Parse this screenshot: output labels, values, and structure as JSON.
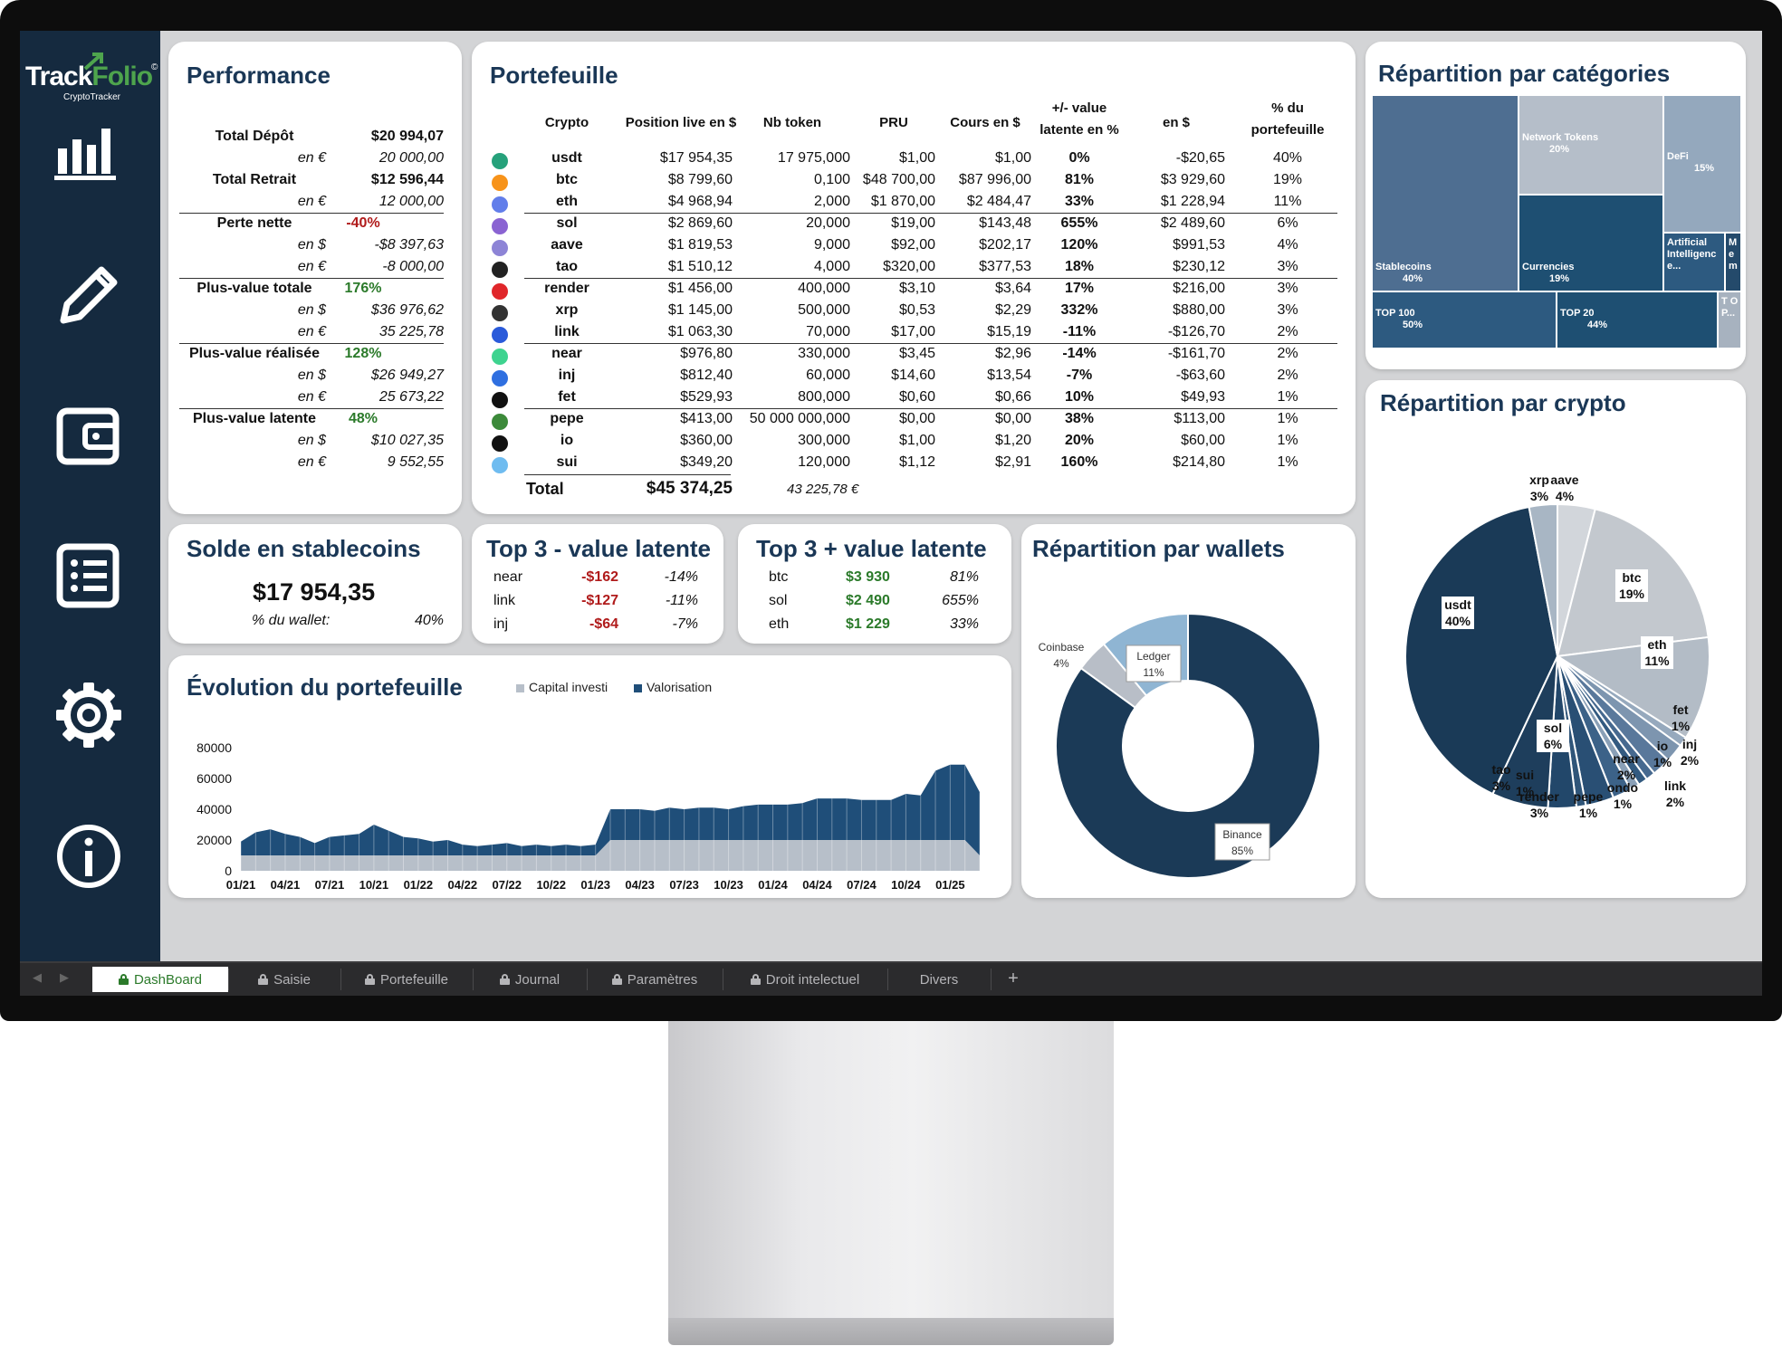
{
  "app": {
    "logo_track": "Track",
    "logo_folio": "Folio",
    "logo_reg": "©",
    "logo_sub": "CryptoTracker"
  },
  "colors": {
    "navy": "#1a3756",
    "dark": "#152a3f",
    "green": "#2b7a2a",
    "red": "#b01b1b"
  },
  "sidebar": {
    "icons": [
      "bar-chart-icon",
      "pencil-icon",
      "wallet-icon",
      "list-icon",
      "gear-icon",
      "info-icon"
    ]
  },
  "performance": {
    "title": "Performance",
    "rows": [
      {
        "label": "Total Dépôt",
        "value": "$20 994,07",
        "kind": "main"
      },
      {
        "label": "en €",
        "value": "20 000,00",
        "kind": "sub"
      },
      {
        "label": "Total Retrait",
        "value": "$12 596,44",
        "kind": "main"
      },
      {
        "label": "en €",
        "value": "12 000,00",
        "kind": "sub"
      },
      {
        "label": "Perte nette",
        "value": "-40%",
        "kind": "main-red"
      },
      {
        "label": "en $",
        "value": "-$8 397,63",
        "kind": "sub"
      },
      {
        "label": "en €",
        "value": "-8 000,00",
        "kind": "sub"
      },
      {
        "label": "Plus-value totale",
        "value": "176%",
        "kind": "main-green"
      },
      {
        "label": "en $",
        "value": "$36 976,62",
        "kind": "sub"
      },
      {
        "label": "en €",
        "value": "35 225,78",
        "kind": "sub"
      },
      {
        "label": "Plus-value réalisée",
        "value": "128%",
        "kind": "main-green"
      },
      {
        "label": "en $",
        "value": "$26 949,27",
        "kind": "sub"
      },
      {
        "label": "en €",
        "value": "25 673,22",
        "kind": "sub"
      },
      {
        "label": "Plus-value latente",
        "value": "48%",
        "kind": "main-green"
      },
      {
        "label": "en $",
        "value": "$10 027,35",
        "kind": "sub"
      },
      {
        "label": "en €",
        "value": "9 552,55",
        "kind": "sub"
      }
    ]
  },
  "portfolio": {
    "title": "Portefeuille",
    "headers": [
      "Crypto",
      "Position live en $",
      "Nb token",
      "PRU",
      "Cours en $",
      "+/- value latente en %",
      "en $",
      "% du portefeuille"
    ],
    "rows": [
      {
        "crypto": "usdt",
        "position": "$17 954,35",
        "nb": "17 975,000",
        "pru": "$1,00",
        "cours": "$1,00",
        "pct": "0%",
        "usd": "-$20,65",
        "share": "40%",
        "pos": false,
        "icon": "tether-icon",
        "color": "#26a17b"
      },
      {
        "crypto": "btc",
        "position": "$8 799,60",
        "nb": "0,100",
        "pru": "$48 700,00",
        "cours": "$87 996,00",
        "pct": "81%",
        "usd": "$3 929,60",
        "share": "19%",
        "pos": true,
        "icon": "bitcoin-icon",
        "color": "#f7931a"
      },
      {
        "crypto": "eth",
        "position": "$4 968,94",
        "nb": "2,000",
        "pru": "$1 870,00",
        "cours": "$2 484,47",
        "pct": "33%",
        "usd": "$1 228,94",
        "share": "11%",
        "pos": true,
        "icon": "ethereum-icon",
        "color": "#627eea"
      },
      {
        "crypto": "sol",
        "position": "$2 869,60",
        "nb": "20,000",
        "pru": "$19,00",
        "cours": "$143,48",
        "pct": "655%",
        "usd": "$2 489,60",
        "share": "6%",
        "pos": true,
        "icon": "solana-icon",
        "color": "#8a63d2"
      },
      {
        "crypto": "aave",
        "position": "$1 819,53",
        "nb": "9,000",
        "pru": "$92,00",
        "cours": "$202,17",
        "pct": "120%",
        "usd": "$991,53",
        "share": "4%",
        "pos": true,
        "icon": "aave-icon",
        "color": "#8d84d6"
      },
      {
        "crypto": "tao",
        "position": "$1 510,12",
        "nb": "4,000",
        "pru": "$320,00",
        "cours": "$377,53",
        "pct": "18%",
        "usd": "$230,12",
        "share": "3%",
        "pos": true,
        "icon": "tao-icon",
        "color": "#222222"
      },
      {
        "crypto": "render",
        "position": "$1 456,00",
        "nb": "400,000",
        "pru": "$3,10",
        "cours": "$3,64",
        "pct": "17%",
        "usd": "$216,00",
        "share": "3%",
        "pos": true,
        "icon": "render-icon",
        "color": "#e0262a"
      },
      {
        "crypto": "xrp",
        "position": "$1 145,00",
        "nb": "500,000",
        "pru": "$0,53",
        "cours": "$2,29",
        "pct": "332%",
        "usd": "$880,00",
        "share": "3%",
        "pos": true,
        "icon": "xrp-icon",
        "color": "#333333"
      },
      {
        "crypto": "link",
        "position": "$1 063,30",
        "nb": "70,000",
        "pru": "$17,00",
        "cours": "$15,19",
        "pct": "-11%",
        "usd": "-$126,70",
        "share": "2%",
        "pos": false,
        "icon": "chainlink-icon",
        "color": "#2a5ada"
      },
      {
        "crypto": "near",
        "position": "$976,80",
        "nb": "330,000",
        "pru": "$3,45",
        "cours": "$2,96",
        "pct": "-14%",
        "usd": "-$161,70",
        "share": "2%",
        "pos": false,
        "icon": "near-icon",
        "color": "#3ed38f"
      },
      {
        "crypto": "inj",
        "position": "$812,40",
        "nb": "60,000",
        "pru": "$14,60",
        "cours": "$13,54",
        "pct": "-7%",
        "usd": "-$63,60",
        "share": "2%",
        "pos": false,
        "icon": "injective-icon",
        "color": "#2f6fe0"
      },
      {
        "crypto": "fet",
        "position": "$529,93",
        "nb": "800,000",
        "pru": "$0,60",
        "cours": "$0,66",
        "pct": "10%",
        "usd": "$49,93",
        "share": "1%",
        "pos": true,
        "icon": "fetch-icon",
        "color": "#111111"
      },
      {
        "crypto": "pepe",
        "position": "$413,00",
        "nb": "50 000 000,000",
        "pru": "$0,00",
        "cours": "$0,00",
        "pct": "38%",
        "usd": "$113,00",
        "share": "1%",
        "pos": true,
        "icon": "pepe-icon",
        "color": "#3c8a3a"
      },
      {
        "crypto": "io",
        "position": "$360,00",
        "nb": "300,000",
        "pru": "$1,00",
        "cours": "$1,20",
        "pct": "20%",
        "usd": "$60,00",
        "share": "1%",
        "pos": true,
        "icon": "io-icon",
        "color": "#111111"
      },
      {
        "crypto": "sui",
        "position": "$349,20",
        "nb": "120,000",
        "pru": "$1,12",
        "cours": "$2,91",
        "pct": "160%",
        "usd": "$214,80",
        "share": "1%",
        "pos": true,
        "icon": "sui-icon",
        "color": "#6fbcf0"
      }
    ],
    "total_label": "Total",
    "total_usd": "$45 374,25",
    "total_eur": "43 225,78 €"
  },
  "stable": {
    "title": "Solde en stablecoins",
    "value": "$17 954,35",
    "pct_label": "% du wallet:",
    "pct": "40%"
  },
  "top_neg": {
    "title": "Top 3 - value latente",
    "rows": [
      {
        "name": "near",
        "usd": "-$162",
        "pct": "-14%"
      },
      {
        "name": "link",
        "usd": "-$127",
        "pct": "-11%"
      },
      {
        "name": "inj",
        "usd": "-$64",
        "pct": "-7%"
      }
    ]
  },
  "top_pos": {
    "title": "Top 3 + value latente",
    "rows": [
      {
        "name": "btc",
        "usd": "$3 930",
        "pct": "81%"
      },
      {
        "name": "sol",
        "usd": "$2 490",
        "pct": "655%"
      },
      {
        "name": "eth",
        "usd": "$1 229",
        "pct": "33%"
      }
    ]
  },
  "evolution": {
    "title": "Évolution du portefeuille"
  },
  "wallets": {
    "title": "Répartition par wallets"
  },
  "categories": {
    "title": "Répartition par catégories"
  },
  "crypto_pie": {
    "title": "Répartition par crypto"
  },
  "chart_data": [
    {
      "type": "area",
      "title": "Évolution du portefeuille",
      "x": [
        "01/21",
        "02/21",
        "03/21",
        "04/21",
        "05/21",
        "06/21",
        "07/21",
        "08/21",
        "09/21",
        "10/21",
        "11/21",
        "12/21",
        "01/22",
        "02/22",
        "03/22",
        "04/22",
        "05/22",
        "06/22",
        "07/22",
        "08/22",
        "09/22",
        "10/22",
        "11/22",
        "12/22",
        "01/23",
        "02/23",
        "03/23",
        "04/23",
        "05/23",
        "06/23",
        "07/23",
        "08/23",
        "09/23",
        "10/23",
        "11/23",
        "12/23",
        "01/24",
        "02/24",
        "03/24",
        "04/24",
        "05/24",
        "06/24",
        "07/24",
        "08/24",
        "09/24",
        "10/24",
        "11/24",
        "12/24",
        "01/25",
        "02/25",
        "03/25"
      ],
      "x_tick_labels": [
        "01/21",
        "04/21",
        "07/21",
        "10/21",
        "01/22",
        "04/22",
        "07/22",
        "10/22",
        "01/23",
        "04/23",
        "07/23",
        "10/23",
        "01/24",
        "04/24",
        "07/24",
        "10/24",
        "01/25"
      ],
      "y_ticks": [
        "80000",
        "60000",
        "40000",
        "20000",
        "0"
      ],
      "ylim": [
        0,
        80000
      ],
      "legend_position": "top",
      "series": [
        {
          "name": "Capital investi",
          "color": "#b7bfc9",
          "values": [
            10000,
            10000,
            10000,
            10000,
            10000,
            10000,
            10000,
            10000,
            10000,
            10000,
            10000,
            10000,
            10000,
            10000,
            10000,
            10000,
            10000,
            10000,
            10000,
            10000,
            10000,
            10000,
            10000,
            10000,
            10000,
            20000,
            20000,
            20000,
            20000,
            20000,
            20000,
            20000,
            20000,
            20000,
            20000,
            20000,
            20000,
            20000,
            20000,
            20000,
            20000,
            20000,
            20000,
            20000,
            20000,
            20000,
            20000,
            20000,
            20000,
            20000,
            10000
          ]
        },
        {
          "name": "Valorisation",
          "color": "#1f4e79",
          "values": [
            19000,
            25000,
            27000,
            24000,
            22000,
            18000,
            22000,
            23000,
            24000,
            30000,
            26000,
            22000,
            21000,
            19000,
            20000,
            17000,
            16000,
            17000,
            18000,
            16000,
            17000,
            16000,
            17000,
            16000,
            17000,
            40000,
            40000,
            40000,
            39000,
            41000,
            40000,
            41000,
            41000,
            40000,
            42000,
            43000,
            43000,
            43000,
            44000,
            47000,
            47000,
            47000,
            46000,
            46000,
            46000,
            50000,
            49000,
            65000,
            69000,
            69000,
            51000
          ]
        }
      ]
    },
    {
      "type": "pie",
      "title": "Répartition par wallets",
      "slices": [
        {
          "label": "Binance",
          "value": 85,
          "display": "85%",
          "color": "#1b3a57"
        },
        {
          "label": "Coinbase",
          "value": 4,
          "display": "4%",
          "color": "#b8bec7"
        },
        {
          "label": "Ledger",
          "value": 11,
          "display": "11%",
          "color": "#8fb5d3"
        }
      ]
    },
    {
      "type": "heatmap",
      "title": "Répartition par catégories",
      "cells": [
        {
          "label": "Stablecoins",
          "value": "40%",
          "color": "#4e6e91"
        },
        {
          "label": "Network Tokens",
          "value": "20%",
          "color": "#b5bec9"
        },
        {
          "label": "DeFi",
          "value": "15%",
          "color": "#94a8bd"
        },
        {
          "label": "Currencies",
          "value": "19%",
          "color": "#1e4f72"
        },
        {
          "label": "Artificial Intelligenc e...",
          "value": "",
          "color": "#2d5a80"
        },
        {
          "label": "M e m",
          "value": "",
          "color": "#244a6b"
        },
        {
          "label": "TOP 100",
          "value": "50%",
          "color": "#2d5a80"
        },
        {
          "label": "TOP 20",
          "value": "44%",
          "color": "#1e4f72"
        },
        {
          "label": "T O P...",
          "value": "",
          "color": "#a7b2bf"
        }
      ]
    },
    {
      "type": "pie",
      "title": "Répartition par crypto",
      "slices": [
        {
          "label": "usdt",
          "value": 40,
          "display": "40%",
          "color": "#1a3a57"
        },
        {
          "label": "btc",
          "value": 19,
          "display": "19%",
          "color": "#c3c8ce"
        },
        {
          "label": "eth",
          "value": 11,
          "display": "11%",
          "color": "#b3bcc6"
        },
        {
          "label": "sol",
          "value": 6,
          "display": "6%",
          "color": "#1e3e5c"
        },
        {
          "label": "aave",
          "value": 4,
          "display": "4%",
          "color": "#d2d6db"
        },
        {
          "label": "tao",
          "value": 3,
          "display": "3%",
          "color": "#22476a"
        },
        {
          "label": "render",
          "value": 3,
          "display": "3%",
          "color": "#294f74"
        },
        {
          "label": "xrp",
          "value": 3,
          "display": "3%",
          "color": "#a8b6c4"
        },
        {
          "label": "link",
          "value": 2,
          "display": "2%",
          "color": "#59789b"
        },
        {
          "label": "near",
          "value": 2,
          "display": "2%",
          "color": "#3c6288"
        },
        {
          "label": "inj",
          "value": 2,
          "display": "2%",
          "color": "#7d95af"
        },
        {
          "label": "fet",
          "value": 1,
          "display": "1%",
          "color": "#96a9bd"
        },
        {
          "label": "pepe",
          "value": 1,
          "display": "1%",
          "color": "#335a80"
        },
        {
          "label": "io",
          "value": 1,
          "display": "1%",
          "color": "#8aa0b7"
        },
        {
          "label": "sui",
          "value": 1,
          "display": "1%",
          "color": "#2f5579"
        },
        {
          "label": "ondo",
          "value": 1,
          "display": "1%",
          "color": "#46698f"
        }
      ]
    }
  ],
  "tabs": [
    {
      "label": "DashBoard",
      "active": true
    },
    {
      "label": "Saisie"
    },
    {
      "label": "Portefeuille"
    },
    {
      "label": "Journal"
    },
    {
      "label": "Paramètres"
    },
    {
      "label": "Droit intelectuel"
    },
    {
      "label": "Divers",
      "nolock": true
    }
  ],
  "tab_add": "+"
}
